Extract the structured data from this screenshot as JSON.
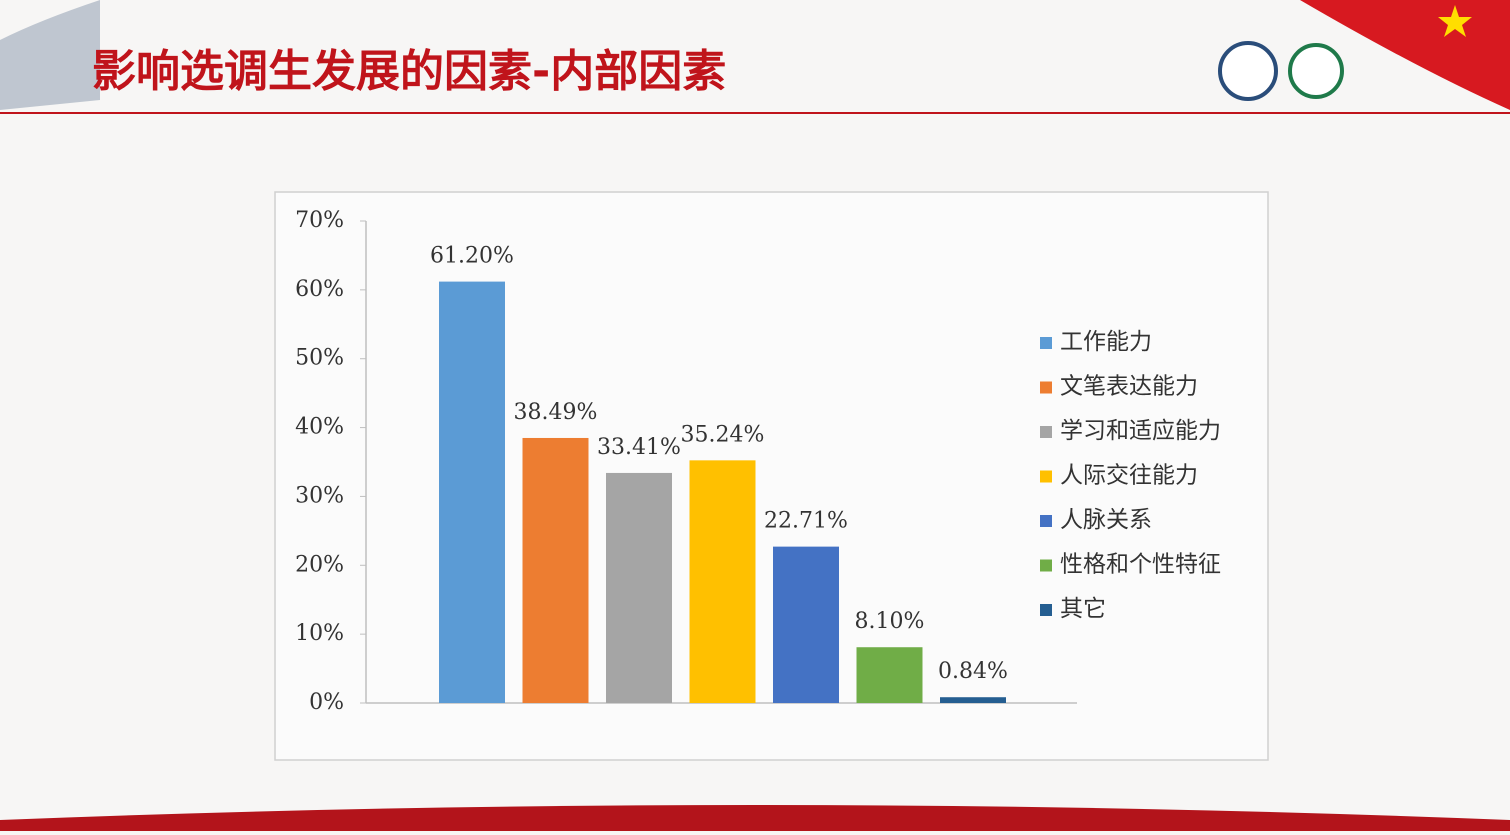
{
  "title": "影响选调生发展的因素-内部因素",
  "chart_data": {
    "type": "bar",
    "categories": [
      "工作能力",
      "文笔表达能力",
      "学习和适应能力",
      "人际交往能力",
      "人脉关系",
      "性格和个性特征",
      "其它"
    ],
    "values": [
      61.2,
      38.49,
      33.41,
      35.24,
      22.71,
      8.1,
      0.84
    ],
    "value_labels": [
      "61.20%",
      "38.49%",
      "33.41%",
      "35.24%",
      "22.71%",
      "8.10%",
      "0.84%"
    ],
    "colors": [
      "#5b9bd5",
      "#ed7d31",
      "#a5a5a5",
      "#ffc000",
      "#4472c4",
      "#70ad47",
      "#255e91"
    ],
    "ylim": [
      0,
      70
    ],
    "yticks": [
      {
        "value": 0,
        "label": "0%"
      },
      {
        "value": 10,
        "label": "10%"
      },
      {
        "value": 20,
        "label": "20%"
      },
      {
        "value": 30,
        "label": "30%"
      },
      {
        "value": 40,
        "label": "40%"
      },
      {
        "value": 50,
        "label": "50%"
      },
      {
        "value": 60,
        "label": "60%"
      },
      {
        "value": 70,
        "label": "70%"
      }
    ],
    "grid": false,
    "legend": "right"
  }
}
